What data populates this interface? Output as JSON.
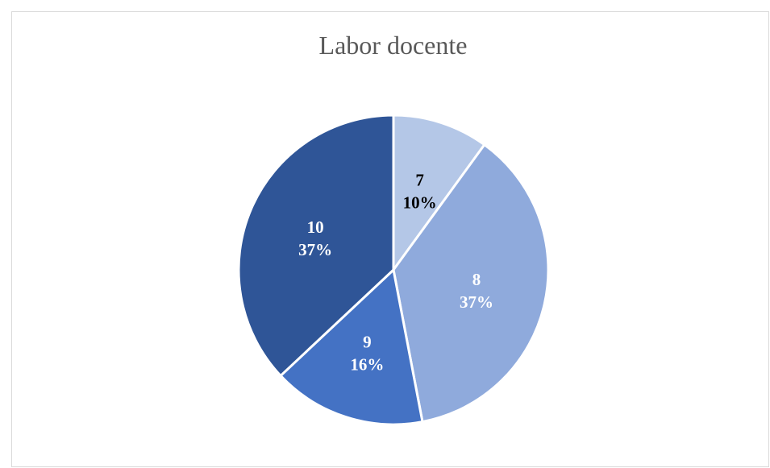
{
  "chart_data": {
    "type": "pie",
    "title": "Labor docente",
    "categories": [
      "7",
      "8",
      "9",
      "10"
    ],
    "values": [
      10,
      37,
      16,
      37
    ],
    "percent_labels": [
      "10%",
      "37%",
      "16%",
      "37%"
    ],
    "colors": [
      "#b4c7e7",
      "#8faadc",
      "#4472c4",
      "#2f5597"
    ],
    "label_colors": [
      "#000000",
      "#ffffff",
      "#ffffff",
      "#ffffff"
    ],
    "legend": "none"
  }
}
